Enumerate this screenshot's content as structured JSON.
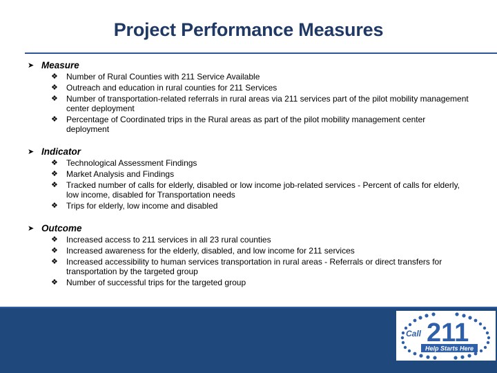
{
  "slide": {
    "title": "Project Performance Measures",
    "sections": [
      {
        "label": "Measure",
        "items": [
          "Number of Rural Counties with 211 Service Available",
          "Outreach and education in rural counties for 211 Services",
          "Number of transportation-related referrals in rural areas via 211 services part of the pilot mobility management center deployment",
          "Percentage of Coordinated trips in the Rural areas as part of the pilot mobility management center deployment"
        ]
      },
      {
        "label": "Indicator",
        "items": [
          "Technological Assessment Findings",
          "Market Analysis and Findings",
          "Tracked number of calls for elderly, disabled or low income job-related services - Percent of calls for elderly, low income, disabled for Transportation needs",
          "Trips for elderly, low income and disabled"
        ]
      },
      {
        "label": "Outcome",
        "items": [
          "Increased access to 211 services in all 23 rural counties",
          "Increased awareness for the elderly, disabled, and low income for 211 services",
          "Increased accessibility to human services transportation in rural areas - Referrals or direct transfers for transportation by the targeted group",
          "Number of successful trips for the targeted group"
        ]
      }
    ]
  },
  "logo": {
    "call": "Call",
    "number": "211",
    "tagline": "Help Starts Here"
  },
  "colors": {
    "title": "#1f3864",
    "footer": "#1f497d",
    "logo_blue": "#2e5fa8"
  }
}
